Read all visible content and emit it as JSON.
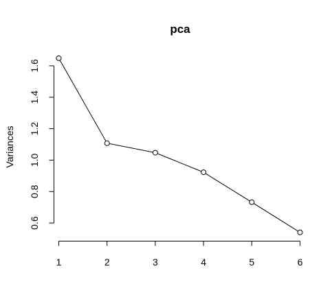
{
  "chart_data": {
    "type": "line",
    "title": "pca",
    "xlabel": "",
    "ylabel": "Variances",
    "x": [
      1,
      2,
      3,
      4,
      5,
      6
    ],
    "series": [
      {
        "values": [
          1.648,
          1.108,
          1.047,
          0.923,
          0.732,
          0.54
        ]
      }
    ],
    "xticks": [
      "1",
      "2",
      "3",
      "4",
      "5",
      "6"
    ],
    "yticks": [
      "0.6",
      "0.8",
      "1.0",
      "1.2",
      "1.4",
      "1.6"
    ],
    "xlim": [
      0.8,
      6.2
    ],
    "ylim": [
      0.5,
      1.7
    ],
    "grid": false,
    "markers": "open-circle",
    "line_color": "#000000",
    "background": "#ffffff"
  }
}
